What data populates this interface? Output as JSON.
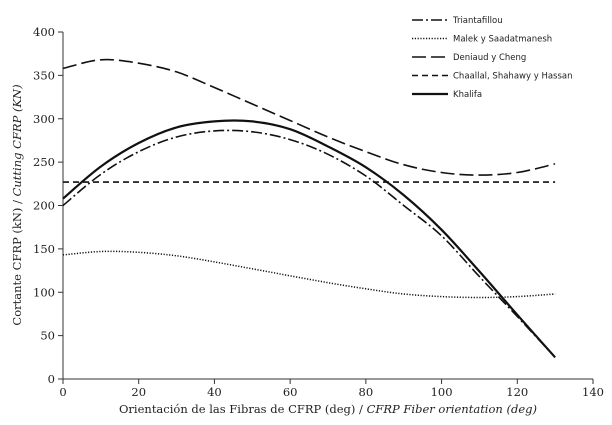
{
  "chart_data": {
    "type": "line",
    "xlabel_parts": [
      "Orientación de las Fibras de CFRP (deg) / ",
      "CFRP Fiber orientation (deg)"
    ],
    "ylabel_parts": [
      "Cortante CFRP (kN) / ",
      "Cutting CFRP (KN)"
    ],
    "xlim": [
      0,
      140
    ],
    "ylim": [
      0,
      400
    ],
    "xticks": [
      "0",
      "20",
      "40",
      "60",
      "80",
      "100",
      "120",
      "140"
    ],
    "yticks": [
      "0",
      "50",
      "100",
      "150",
      "200",
      "250",
      "300",
      "350",
      "400"
    ],
    "grid": false,
    "legend_position": "top-right",
    "series": [
      {
        "name": "Triantafillou",
        "dash": "dash-dot",
        "x": [
          0,
          10,
          20,
          30,
          40,
          50,
          60,
          70,
          80,
          90,
          100,
          110,
          120,
          130
        ],
        "y": [
          200,
          236,
          262,
          279,
          286,
          285,
          276,
          259,
          234,
          200,
          165,
          118,
          72,
          25
        ]
      },
      {
        "name": "Malek y Saadatmanesh",
        "dash": "dotted",
        "x": [
          0,
          10,
          20,
          30,
          40,
          50,
          60,
          70,
          80,
          90,
          100,
          110,
          120,
          130
        ],
        "y": [
          143,
          147,
          146,
          142,
          135,
          127,
          119,
          111,
          104,
          98,
          95,
          94,
          95,
          98
        ]
      },
      {
        "name": "Deniaud y Cheng",
        "dash": "long-dash",
        "x": [
          0,
          10,
          20,
          30,
          40,
          50,
          60,
          70,
          80,
          90,
          100,
          110,
          120,
          130
        ],
        "y": [
          358,
          368,
          364,
          354,
          336,
          317,
          298,
          279,
          262,
          247,
          238,
          235,
          238,
          248
        ]
      },
      {
        "name": "Chaallal, Shahawy y Hassan",
        "dash": "short-dash",
        "x": [
          0,
          130
        ],
        "y": [
          227,
          227
        ]
      },
      {
        "name": "Khalifa",
        "dash": "solid",
        "x": [
          0,
          10,
          20,
          30,
          40,
          50,
          60,
          70,
          80,
          90,
          100,
          110,
          120,
          130
        ],
        "y": [
          208,
          245,
          272,
          290,
          297,
          297,
          288,
          268,
          244,
          212,
          172,
          124,
          74,
          25
        ]
      }
    ]
  }
}
